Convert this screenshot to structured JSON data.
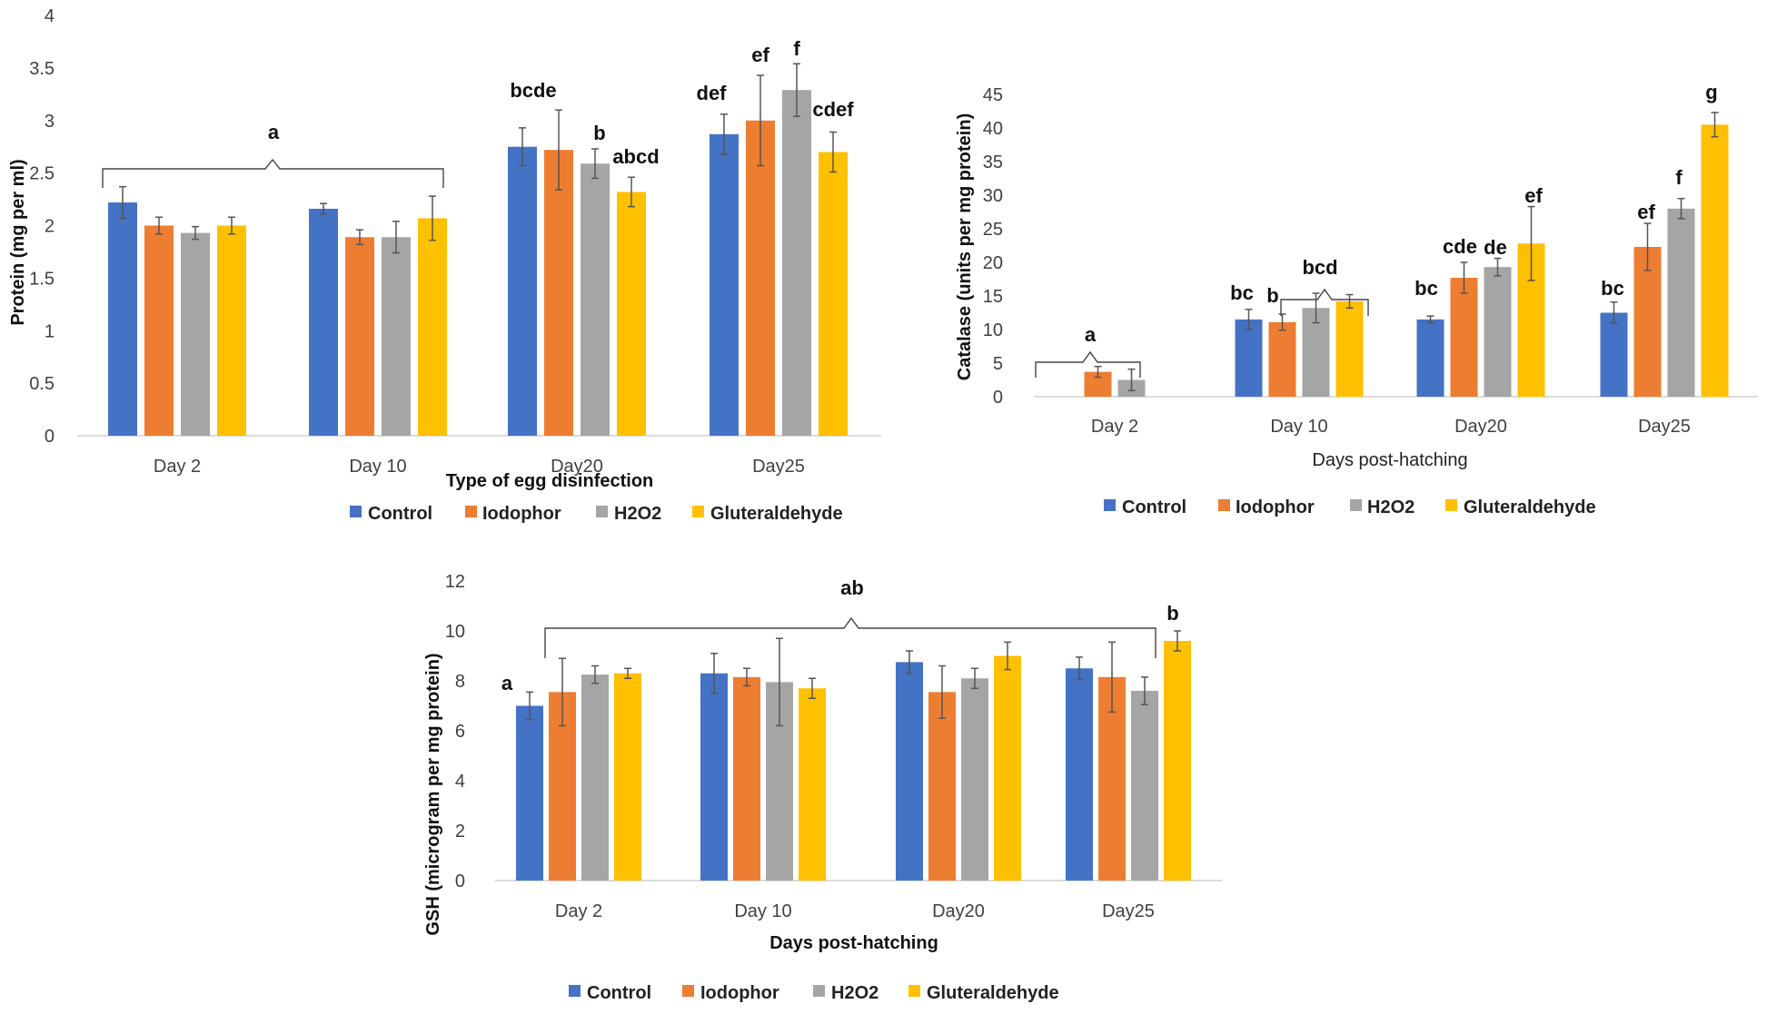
{
  "colors": {
    "Control": "#4472C4",
    "Iodophor": "#ED7D31",
    "H2O2": "#A5A5A5",
    "Gluteraldehyde": "#FFC000"
  },
  "chart_data": [
    {
      "type": "bar",
      "ylabel": "Protein (mg per ml)",
      "xlabel": "Type of  egg disinfection",
      "ylim": [
        0,
        4
      ],
      "yticks": [
        "0",
        "0.5",
        "1",
        "1.5",
        "2",
        "2.5",
        "3",
        "3.5",
        "4"
      ],
      "categories": [
        "Day 2",
        "Day 10",
        "Day20",
        "Day25"
      ],
      "series": [
        {
          "name": "Control",
          "values": [
            2.22,
            2.16,
            2.75,
            2.87
          ],
          "errors": [
            0.15,
            0.05,
            0.18,
            0.19
          ]
        },
        {
          "name": "Iodophor",
          "values": [
            2.0,
            1.89,
            2.72,
            3.0
          ],
          "errors": [
            0.08,
            0.07,
            0.38,
            0.43
          ]
        },
        {
          "name": "H2O2",
          "values": [
            1.93,
            1.89,
            2.59,
            3.29
          ],
          "errors": [
            0.06,
            0.15,
            0.14,
            0.25
          ]
        },
        {
          "name": "Gluteraldehyde",
          "values": [
            2.0,
            2.07,
            2.32,
            2.7
          ],
          "errors": [
            0.08,
            0.21,
            0.14,
            0.19
          ]
        }
      ],
      "annotations": [
        "a",
        "bcde",
        "b",
        "abcd",
        "def",
        "ef",
        "f",
        "cdef"
      ],
      "legend": [
        "Control",
        "Iodophor",
        "H2O2",
        "Gluteraldehyde"
      ]
    },
    {
      "type": "bar",
      "ylabel": "Catalase (units per mg protein)",
      "xlabel": "Days post-hatching",
      "ylim": [
        0,
        45
      ],
      "yticks": [
        "0",
        "5",
        "10",
        "15",
        "20",
        "25",
        "30",
        "35",
        "40",
        "45"
      ],
      "categories": [
        "Day 2",
        "Day 10",
        "Day20",
        "Day25"
      ],
      "series": [
        {
          "name": "Control",
          "values": [
            0,
            11.5,
            11.5,
            12.5
          ],
          "errors": [
            0,
            1.5,
            0.5,
            1.6
          ]
        },
        {
          "name": "Iodophor",
          "values": [
            3.7,
            11.1,
            17.7,
            22.3
          ],
          "errors": [
            0.8,
            1.2,
            2.3,
            3.5
          ]
        },
        {
          "name": "H2O2",
          "values": [
            2.5,
            13.2,
            19.3,
            28.0
          ],
          "errors": [
            1.6,
            2.2,
            1.3,
            1.5
          ]
        },
        {
          "name": "Gluteraldehyde",
          "values": [
            0,
            14.2,
            22.8,
            40.5
          ],
          "errors": [
            0,
            1.0,
            5.5,
            1.8
          ]
        }
      ],
      "annotations": [
        "a",
        "bc",
        "b",
        "bcd",
        "bc",
        "cde",
        "de",
        "ef",
        "bc",
        "ef",
        "f",
        "g"
      ],
      "legend": [
        "Control",
        "Iodophor",
        "H2O2",
        "Gluteraldehyde"
      ]
    },
    {
      "type": "bar",
      "ylabel": "GSH (microgram per mg protein)",
      "xlabel": "Days post-hatching",
      "ylim": [
        0,
        12
      ],
      "yticks": [
        "0",
        "2",
        "4",
        "6",
        "8",
        "10",
        "12"
      ],
      "categories": [
        "Day 2",
        "Day 10",
        "Day20",
        "Day25"
      ],
      "series": [
        {
          "name": "Control",
          "values": [
            7.0,
            8.3,
            8.75,
            8.5
          ],
          "errors": [
            0.55,
            0.8,
            0.45,
            0.45
          ]
        },
        {
          "name": "Iodophor",
          "values": [
            7.55,
            8.15,
            7.55,
            8.15
          ],
          "errors": [
            1.35,
            0.35,
            1.05,
            1.4
          ]
        },
        {
          "name": "H2O2",
          "values": [
            8.25,
            7.95,
            8.1,
            7.6
          ],
          "errors": [
            0.35,
            1.75,
            0.4,
            0.55
          ]
        },
        {
          "name": "Gluteraldehyde",
          "values": [
            8.3,
            7.7,
            9.0,
            9.6
          ],
          "errors": [
            0.2,
            0.4,
            0.55,
            0.4
          ]
        }
      ],
      "annotations": [
        "ab",
        "a",
        "b"
      ],
      "legend": [
        "Control",
        "Iodophor",
        "H2O2",
        "Gluteraldehyde"
      ]
    }
  ]
}
